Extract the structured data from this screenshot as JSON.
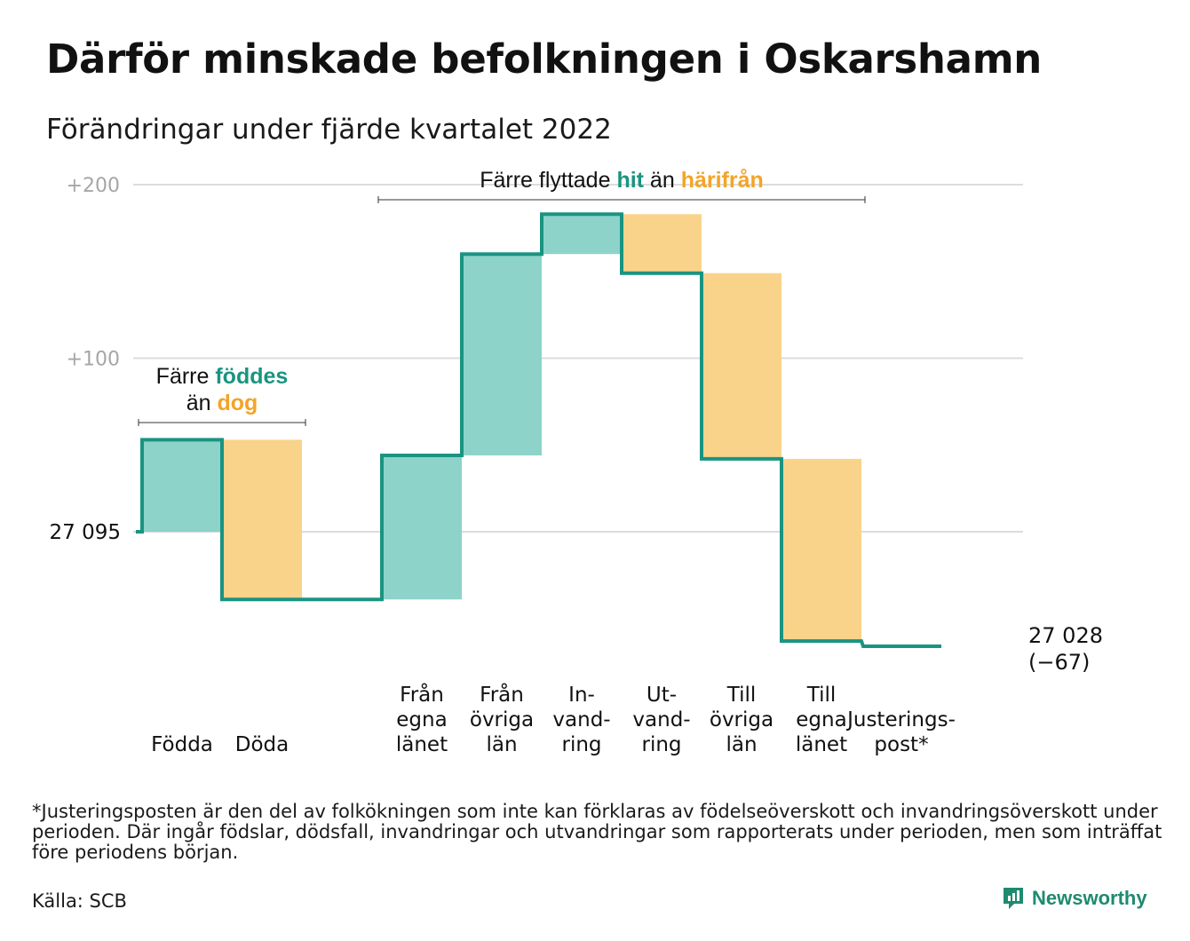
{
  "title": "Därför minskade befolkningen i Oskarshamn",
  "subtitle": "Förändringar under fjärde kvartalet 2022",
  "footnote": "*Justeringsposten är den del av folkökningen som inte kan förklaras av födelseöverskott och invandringsöverskott under perioden. Där ingår födslar, dödsfall, invandringar och utvandringar som rapporterats under perioden, men som inträffat före periodens början.",
  "source": "Källa: SCB",
  "brand": "Newsworthy",
  "colors": {
    "increase": "#8dd3ca",
    "decrease": "#f9d38a",
    "line": "#1a9480",
    "accent_orange": "#f3a428",
    "grid": "#dcdcdc",
    "axis_text": "#a6a6a6"
  },
  "chart_data": {
    "type": "waterfall",
    "start": {
      "label": "27 095",
      "value": 27095
    },
    "end": {
      "label": "27 028",
      "change": "(−67)",
      "value": 27028
    },
    "y_ticks": [
      {
        "label": "+100",
        "value": 100
      },
      {
        "label": "+200",
        "value": 200
      }
    ],
    "ylim": [
      -75,
      210
    ],
    "steps": [
      {
        "label": [
          "Födda"
        ],
        "change": 53,
        "kind": "increase"
      },
      {
        "label": [
          "Döda"
        ],
        "change": -92,
        "kind": "decrease"
      },
      {
        "label": [],
        "change": 0,
        "kind": "gap"
      },
      {
        "label": [
          "Från",
          "egna",
          "länet"
        ],
        "change": 83,
        "kind": "increase"
      },
      {
        "label": [
          "Från",
          "övriga",
          "län"
        ],
        "change": 116,
        "kind": "increase"
      },
      {
        "label": [
          "In-",
          "vand-",
          "ring"
        ],
        "change": 23,
        "kind": "increase"
      },
      {
        "label": [
          "Ut-",
          "vand-",
          "ring"
        ],
        "change": -34,
        "kind": "decrease"
      },
      {
        "label": [
          "Till",
          "övriga",
          "län"
        ],
        "change": -107,
        "kind": "decrease"
      },
      {
        "label": [
          "Till",
          "egna",
          "länet"
        ],
        "change": -105,
        "kind": "decrease"
      },
      {
        "label": [
          "Justerings-",
          "post*"
        ],
        "change": -3,
        "kind": "adjust"
      }
    ],
    "annotations": [
      {
        "lines": [
          [
            {
              "text": "Färre ",
              "style": "plain"
            },
            {
              "text": "föddes",
              "style": "increase"
            }
          ],
          [
            {
              "text": "än ",
              "style": "plain"
            },
            {
              "text": "dog",
              "style": "decrease"
            }
          ]
        ],
        "from_step": 0,
        "to_step": 1
      },
      {
        "lines": [
          [
            {
              "text": "Färre flyttade ",
              "style": "plain"
            },
            {
              "text": "hit",
              "style": "increase"
            },
            {
              "text": " än ",
              "style": "plain"
            },
            {
              "text": "härifrån",
              "style": "decrease"
            }
          ]
        ],
        "from_step": 3,
        "to_step": 8
      }
    ]
  }
}
